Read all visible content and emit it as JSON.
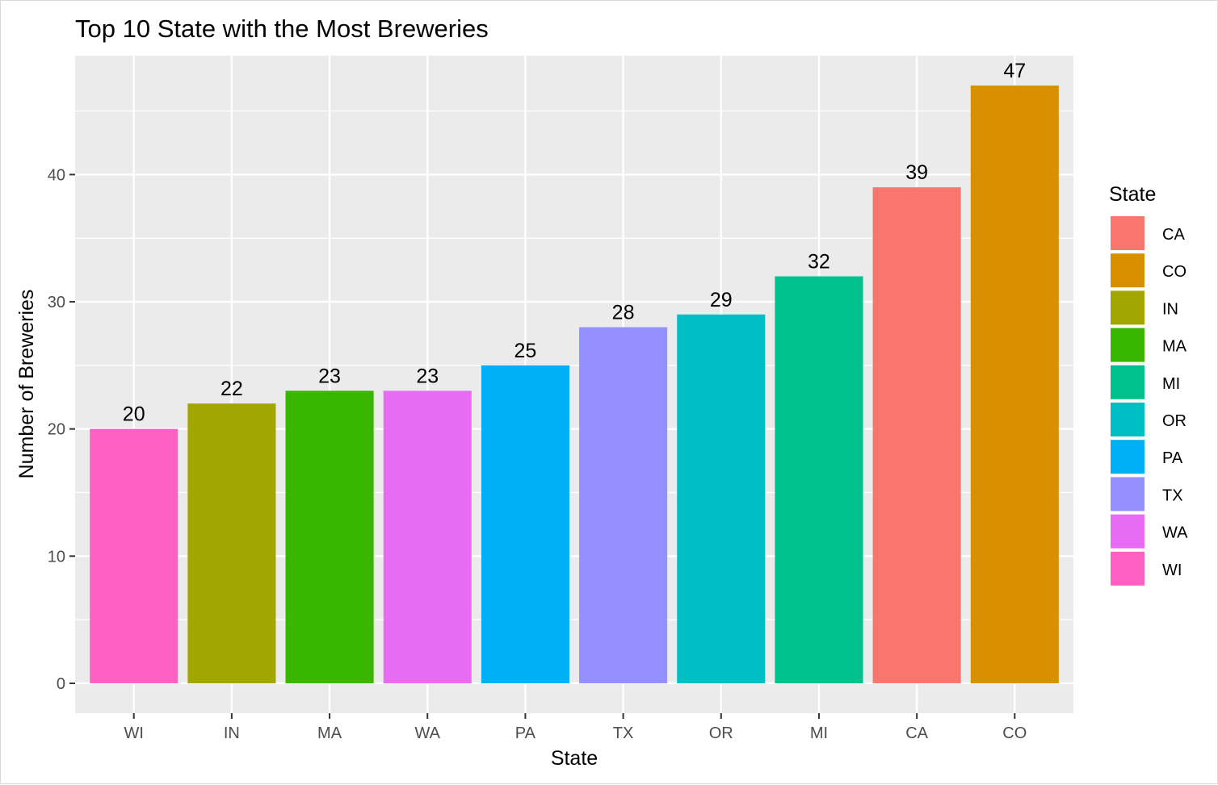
{
  "chart_data": {
    "type": "bar",
    "title": "Top 10 State with the Most Breweries",
    "xlabel": "State",
    "ylabel": "Number of Breweries",
    "categories": [
      "WI",
      "IN",
      "MA",
      "WA",
      "PA",
      "TX",
      "OR",
      "MI",
      "CA",
      "CO"
    ],
    "values": [
      20,
      22,
      23,
      23,
      25,
      28,
      29,
      32,
      39,
      47
    ],
    "bar_colors": [
      "#FF61C3",
      "#A3A500",
      "#39B600",
      "#E76BF3",
      "#00B0F6",
      "#9590FF",
      "#00BFC4",
      "#00C08B",
      "#F8766D",
      "#D89000"
    ],
    "ylim": [
      -2.35,
      49.35
    ],
    "yticks": [
      0,
      10,
      20,
      30,
      40
    ],
    "grid": true,
    "legend": {
      "title": "State",
      "position": "right",
      "entries": [
        {
          "label": "CA",
          "color": "#F8766D"
        },
        {
          "label": "CO",
          "color": "#D89000"
        },
        {
          "label": "IN",
          "color": "#A3A500"
        },
        {
          "label": "MA",
          "color": "#39B600"
        },
        {
          "label": "MI",
          "color": "#00C08B"
        },
        {
          "label": "OR",
          "color": "#00BFC4"
        },
        {
          "label": "PA",
          "color": "#00B0F6"
        },
        {
          "label": "TX",
          "color": "#9590FF"
        },
        {
          "label": "WA",
          "color": "#E76BF3"
        },
        {
          "label": "WI",
          "color": "#FF61C3"
        }
      ]
    }
  }
}
